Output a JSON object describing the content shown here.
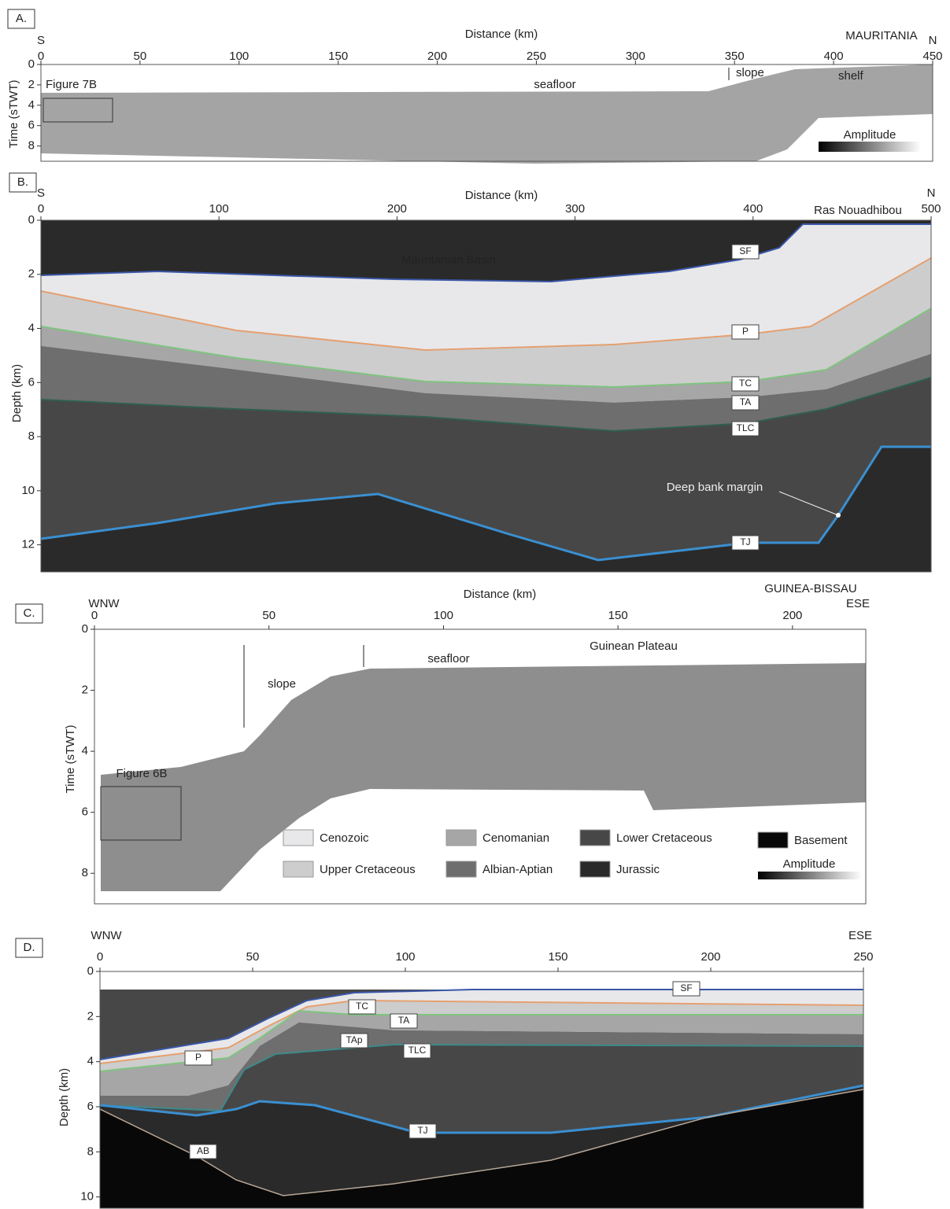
{
  "panels": [
    {
      "label": "A.",
      "x_title": "Distance (km)",
      "y_title": "Time (sTWT)",
      "start": "S",
      "end": "N",
      "place": "MAURITANIA",
      "xlim": [
        0,
        450
      ],
      "xticks": [
        0,
        50,
        100,
        150,
        200,
        250,
        300,
        350,
        400,
        450
      ],
      "ylim": [
        0,
        9.5
      ],
      "yticks": [
        0,
        2,
        4,
        6,
        8
      ],
      "annotations": [
        "Figure 7B",
        "seafloor",
        "slope",
        "shelf"
      ],
      "amplitude": "Amplitude"
    },
    {
      "label": "B.",
      "x_title": "Distance (km)",
      "y_title": "Depth (km)",
      "start": "S",
      "end": "N",
      "place": "Ras Nouadhibou",
      "xlim": [
        0,
        500
      ],
      "xticks": [
        0,
        100,
        200,
        300,
        400,
        500
      ],
      "ylim": [
        0,
        13
      ],
      "yticks": [
        0,
        2,
        4,
        6,
        8,
        10,
        12
      ],
      "annotations": [
        "Mauritanian Basin",
        "Deep bank margin"
      ],
      "horizons": [
        "SF",
        "P",
        "TC",
        "TA",
        "TLC",
        "TJ"
      ]
    },
    {
      "label": "C.",
      "x_title": "Distance (km)",
      "y_title": "Time (sTWT)",
      "start": "WNW",
      "end": "ESE",
      "place": "GUINEA-BISSAU",
      "xlim": [
        0,
        221
      ],
      "xticks": [
        0,
        50,
        100,
        150,
        200
      ],
      "ylim": [
        0,
        9
      ],
      "yticks": [
        0,
        2,
        4,
        6,
        8
      ],
      "annotations": [
        "Guinean Plateau",
        "seafloor",
        "slope",
        "Figure 6B"
      ],
      "amplitude": "Amplitude"
    },
    {
      "label": "D.",
      "y_title": "Depth (km)",
      "start": "WNW",
      "end": "ESE",
      "xlim": [
        0,
        250
      ],
      "xticks": [
        0,
        50,
        100,
        150,
        200,
        250
      ],
      "ylim": [
        0,
        10.5
      ],
      "yticks": [
        0,
        2,
        4,
        6,
        8,
        10
      ],
      "horizons": [
        "SF",
        "TC",
        "TA",
        "TAp",
        "TLC",
        "P",
        "TJ",
        "AB"
      ]
    }
  ],
  "legend": [
    {
      "name": "Cenozoic",
      "color": "#e8e8ea"
    },
    {
      "name": "Upper Cretaceous",
      "color": "#cdcdcd"
    },
    {
      "name": "Cenomanian",
      "color": "#a6a6a6"
    },
    {
      "name": "Albian-Aptian",
      "color": "#6e6e6e"
    },
    {
      "name": "Lower Cretaceous",
      "color": "#474747"
    },
    {
      "name": "Jurassic",
      "color": "#2a2a2a"
    },
    {
      "name": "Basement",
      "color": "#080808"
    }
  ]
}
